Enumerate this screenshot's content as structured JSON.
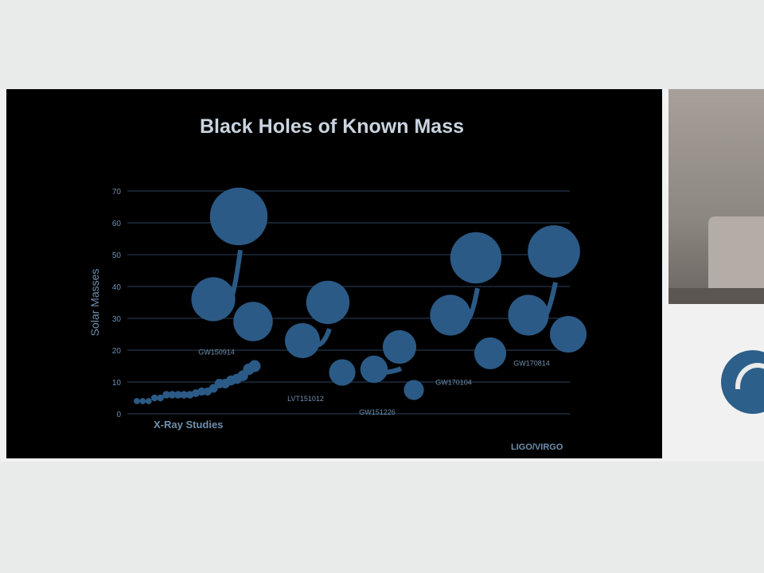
{
  "chart_data": {
    "type": "scatter",
    "title": "Black Holes of Known Mass",
    "ylabel": "Solar Masses",
    "ylim": [
      0,
      70
    ],
    "yticks": [
      0,
      10,
      20,
      30,
      40,
      50,
      60,
      70
    ],
    "grid": true,
    "bottom_left_label": "X-Ray Studies",
    "source_label": "LIGO/VIRGO",
    "colors": {
      "bubble": "#2b5a86",
      "grid": "#27425c",
      "axis_text": "#6f8fad",
      "title": "#c9d4df"
    },
    "xray_points": [
      4,
      4,
      4,
      5,
      5,
      6,
      6,
      6,
      6,
      6,
      6.5,
      7,
      7,
      8,
      9.5,
      9.5,
      10.5,
      11,
      12,
      14,
      15
    ],
    "mergers": [
      {
        "label": "GW150914",
        "primary": 36,
        "secondary": 29,
        "final": 62
      },
      {
        "label": "LVT151012",
        "primary": 23,
        "secondary": 13,
        "final": 35
      },
      {
        "label": "GW151226",
        "primary": 14,
        "secondary": 7.5,
        "final": 21
      },
      {
        "label": "GW170104",
        "primary": 31,
        "secondary": 19,
        "final": 49
      },
      {
        "label": "GW170814",
        "primary": 31,
        "secondary": 25,
        "final": 51
      }
    ]
  }
}
